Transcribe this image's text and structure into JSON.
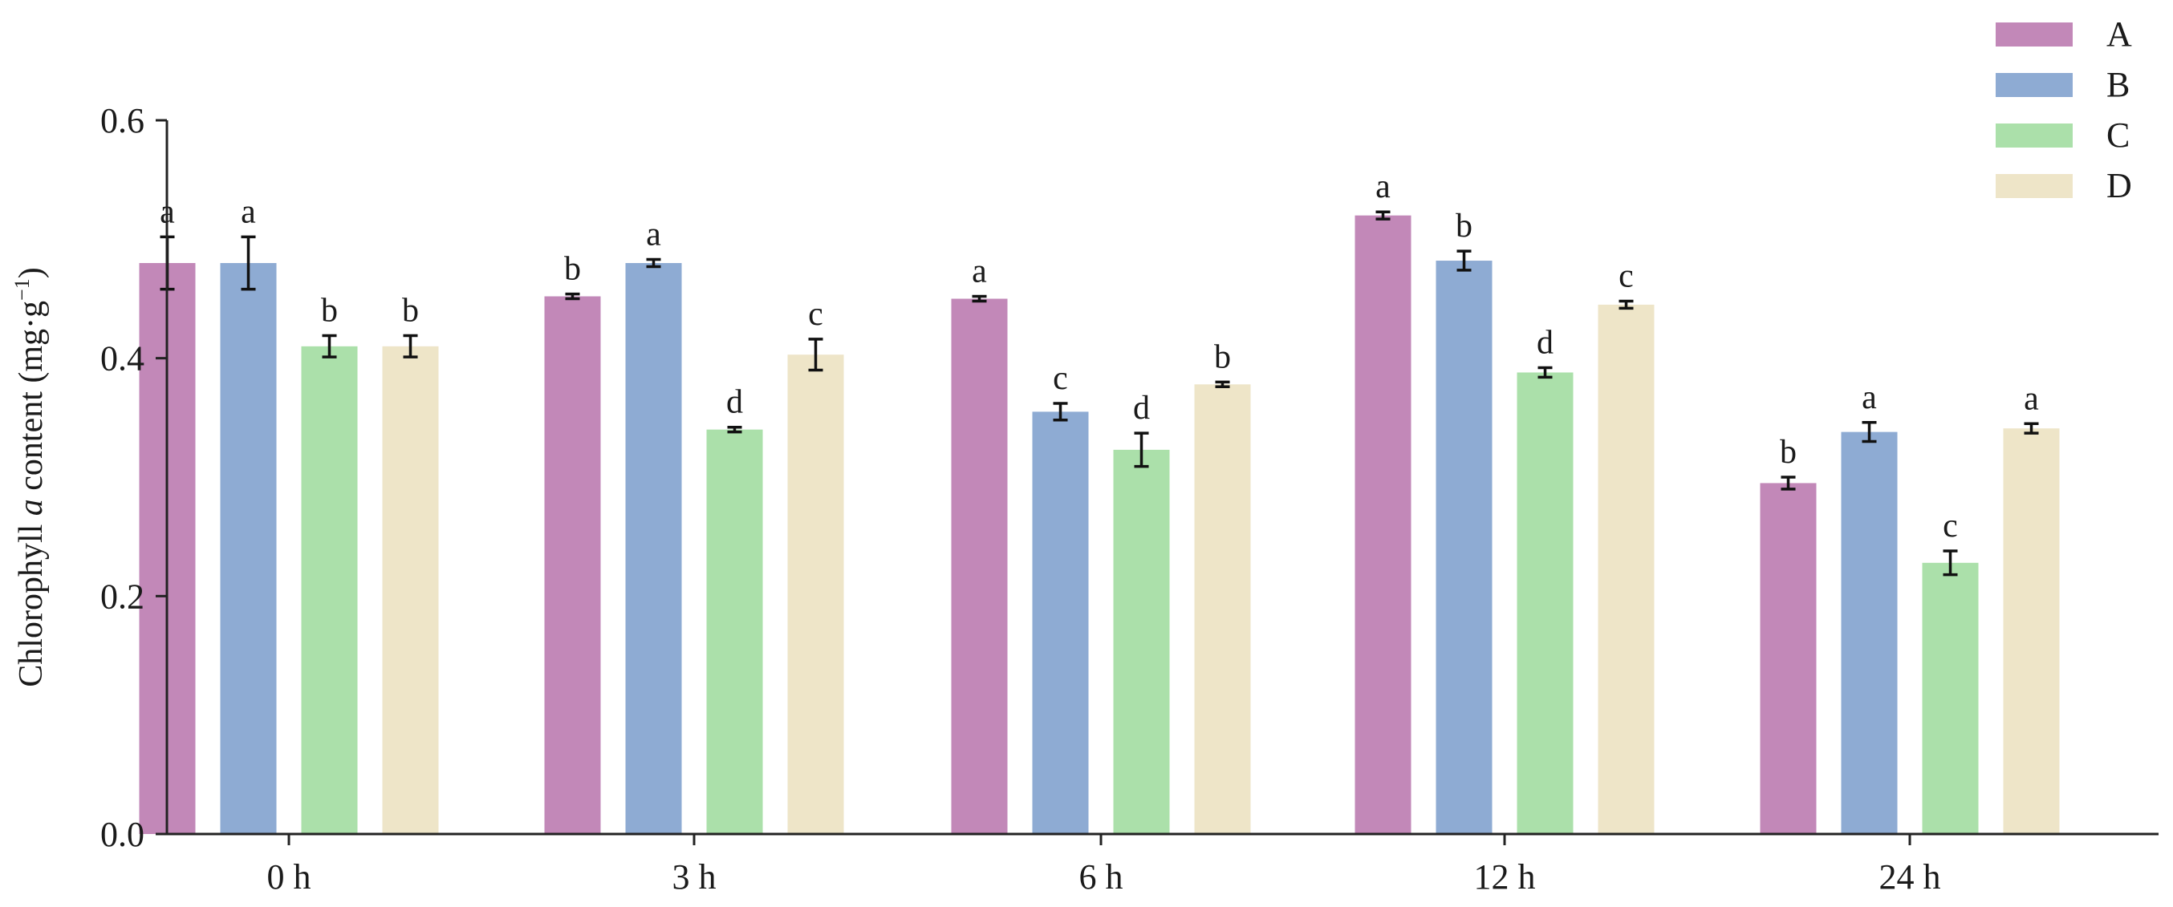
{
  "chart_data": {
    "type": "bar",
    "title": "",
    "xlabel": "",
    "ylabel_prefix": "Chlorophyll ",
    "ylabel_italic": "a",
    "ylabel_suffix": " content (mg·g",
    "ylabel_exponent": "−1",
    "ylabel_close": ")",
    "ylim": [
      0.0,
      0.6
    ],
    "yticks": [
      "0.0",
      "0.2",
      "0.4",
      "0.6"
    ],
    "ytick_values": [
      0.0,
      0.2,
      0.4,
      0.6
    ],
    "grid": false,
    "legend_position": "top-right",
    "categories": [
      "0 h",
      "3 h",
      "6 h",
      "12 h",
      "24 h"
    ],
    "series": [
      {
        "name": "A",
        "color": "#c288b8",
        "values": [
          0.48,
          0.452,
          0.45,
          0.52,
          0.295
        ],
        "errors": [
          0.022,
          0.002,
          0.002,
          0.003,
          0.005
        ],
        "sig": [
          "a",
          "b",
          "a",
          "a",
          "b"
        ]
      },
      {
        "name": "B",
        "color": "#8eabd3",
        "values": [
          0.48,
          0.48,
          0.355,
          0.482,
          0.338
        ],
        "errors": [
          0.022,
          0.003,
          0.007,
          0.008,
          0.008
        ],
        "sig": [
          "a",
          "a",
          "c",
          "b",
          "a"
        ]
      },
      {
        "name": "C",
        "color": "#abe0aa",
        "values": [
          0.41,
          0.34,
          0.323,
          0.388,
          0.228
        ],
        "errors": [
          0.009,
          0.002,
          0.014,
          0.004,
          0.01
        ],
        "sig": [
          "b",
          "d",
          "d",
          "d",
          "c"
        ]
      },
      {
        "name": "D",
        "color": "#eee5c8",
        "values": [
          0.41,
          0.403,
          0.378,
          0.445,
          0.341
        ],
        "errors": [
          0.009,
          0.013,
          0.002,
          0.003,
          0.004
        ],
        "sig": [
          "b",
          "c",
          "b",
          "c",
          "a"
        ]
      }
    ]
  }
}
